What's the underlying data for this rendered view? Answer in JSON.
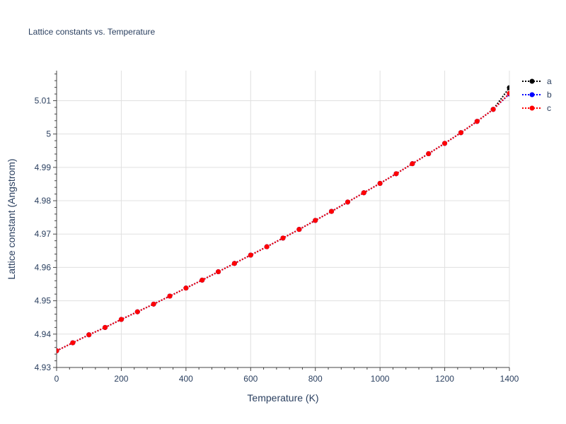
{
  "chart_data": {
    "type": "line",
    "title": "Lattice constants vs. Temperature",
    "xlabel": "Temperature (K)",
    "ylabel": "Lattice constant (Angstrom)",
    "xlim": [
      0,
      1400
    ],
    "ylim": [
      4.93,
      5.019
    ],
    "xticks": [
      0,
      200,
      400,
      600,
      800,
      1000,
      1200,
      1400
    ],
    "xtick_labels": [
      "0",
      "200",
      "400",
      "600",
      "800",
      "1000",
      "1200",
      "1400"
    ],
    "yticks": [
      4.93,
      4.94,
      4.95,
      4.96,
      4.97,
      4.98,
      4.99,
      5.0,
      5.01
    ],
    "ytick_labels": [
      "4.93",
      "4.94",
      "4.95",
      "4.96",
      "4.97",
      "4.98",
      "4.99",
      "5",
      "5.01"
    ],
    "grid": true,
    "legend_position": "top-right",
    "x": [
      0,
      50,
      100,
      150,
      200,
      250,
      300,
      350,
      400,
      450,
      500,
      550,
      600,
      650,
      700,
      750,
      800,
      850,
      900,
      950,
      1000,
      1050,
      1100,
      1150,
      1200,
      1250,
      1300,
      1350,
      1400
    ],
    "series": [
      {
        "name": "a",
        "color": "#000000",
        "values": [
          4.935,
          4.9374,
          4.9398,
          4.942,
          4.9444,
          4.9467,
          4.949,
          4.9514,
          4.9538,
          4.9562,
          4.9587,
          4.9612,
          4.9637,
          4.9662,
          4.9688,
          4.9714,
          4.9741,
          4.9768,
          4.9796,
          4.9824,
          4.9852,
          4.9881,
          4.9911,
          4.9941,
          4.9972,
          5.0004,
          5.0038,
          5.0074,
          5.0139
        ]
      },
      {
        "name": "b",
        "color": "#0000ff",
        "values": [
          4.935,
          4.9374,
          4.9398,
          4.942,
          4.9444,
          4.9467,
          4.949,
          4.9514,
          4.9538,
          4.9562,
          4.9587,
          4.9612,
          4.9637,
          4.9662,
          4.9688,
          4.9714,
          4.9741,
          4.9768,
          4.9796,
          4.9824,
          4.9852,
          4.9881,
          4.9911,
          4.9941,
          4.9972,
          5.0004,
          5.0038,
          5.0074,
          5.012
        ]
      },
      {
        "name": "c",
        "color": "#ff0000",
        "values": [
          4.935,
          4.9374,
          4.9398,
          4.942,
          4.9444,
          4.9467,
          4.949,
          4.9514,
          4.9538,
          4.9562,
          4.9587,
          4.9612,
          4.9637,
          4.9662,
          4.9688,
          4.9714,
          4.9741,
          4.9768,
          4.9796,
          4.9824,
          4.9852,
          4.9881,
          4.9911,
          4.9941,
          4.9972,
          5.0004,
          5.0038,
          5.0074,
          5.0122
        ]
      }
    ]
  }
}
